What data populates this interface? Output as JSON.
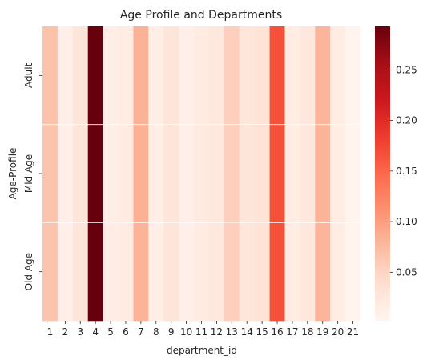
{
  "chart_data": {
    "type": "heatmap",
    "title": "Age Profile and Departments",
    "xlabel": "department_id",
    "ylabel": "Age-Profile",
    "x_categories": [
      "1",
      "2",
      "3",
      "4",
      "5",
      "6",
      "7",
      "8",
      "9",
      "10",
      "11",
      "12",
      "13",
      "14",
      "15",
      "16",
      "17",
      "18",
      "19",
      "20",
      "21"
    ],
    "y_categories": [
      "Adult",
      "Mid Age",
      "Old Age"
    ],
    "values": [
      [
        0.068,
        0.012,
        0.03,
        0.293,
        0.014,
        0.018,
        0.083,
        0.014,
        0.03,
        0.012,
        0.02,
        0.026,
        0.055,
        0.028,
        0.034,
        0.167,
        0.018,
        0.024,
        0.08,
        0.016,
        0.004
      ],
      [
        0.066,
        0.012,
        0.029,
        0.293,
        0.014,
        0.019,
        0.084,
        0.014,
        0.03,
        0.012,
        0.021,
        0.026,
        0.055,
        0.029,
        0.034,
        0.167,
        0.018,
        0.025,
        0.081,
        0.016,
        0.004
      ],
      [
        0.066,
        0.012,
        0.03,
        0.293,
        0.015,
        0.019,
        0.082,
        0.014,
        0.03,
        0.012,
        0.02,
        0.026,
        0.055,
        0.028,
        0.034,
        0.167,
        0.018,
        0.024,
        0.08,
        0.016,
        0.004
      ]
    ],
    "colorbar": {
      "min": 0.002,
      "max": 0.293,
      "ticks": [
        0.05,
        0.1,
        0.15,
        0.2,
        0.25
      ],
      "tick_labels": [
        "0.05",
        "0.10",
        "0.15",
        "0.20",
        "0.25"
      ]
    },
    "colormap": "Reds",
    "grid": false
  }
}
